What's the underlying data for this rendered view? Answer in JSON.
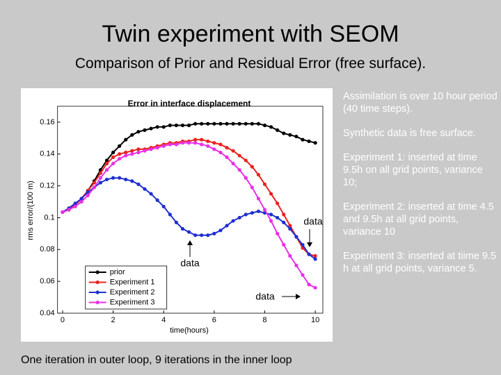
{
  "slide": {
    "title": "Twin experiment with SEOM",
    "subtitle": "Comparison of Prior and Residual Error (free surface).",
    "notes": [
      "Assimilation is over 10 hour period (40 time steps).",
      "Synthetic data is free surface.",
      "Experiment 1: inserted at time 9.5h on all grid points, variance 10;",
      "Experiment 2: inserted at time 4.5 and 9.5h at all grid points, variance 10",
      "Experiment 3: inserted at tiime 9.5 h at all grid points, variance 5."
    ],
    "caption": "One iteration in outer loop, 9 iterations in the inner loop"
  },
  "chart_data": {
    "type": "line",
    "title": "Error in interface displacement",
    "xlabel": "time(hours)",
    "ylabel": "rms error/(100 m)",
    "x": [
      0,
      0.25,
      0.5,
      0.75,
      1,
      1.25,
      1.5,
      1.75,
      2,
      2.25,
      2.5,
      2.75,
      3,
      3.25,
      3.5,
      3.75,
      4,
      4.25,
      4.5,
      4.75,
      5,
      5.25,
      5.5,
      5.75,
      6,
      6.25,
      6.5,
      6.75,
      7,
      7.25,
      7.5,
      7.75,
      8,
      8.25,
      8.5,
      8.75,
      9,
      9.25,
      9.5,
      9.75,
      10
    ],
    "series": [
      {
        "name": "prior",
        "color": "#000000",
        "values": [
          0.1035,
          0.105,
          0.108,
          0.112,
          0.117,
          0.123,
          0.13,
          0.136,
          0.141,
          0.145,
          0.149,
          0.152,
          0.154,
          0.155,
          0.156,
          0.157,
          0.157,
          0.158,
          0.158,
          0.158,
          0.158,
          0.159,
          0.159,
          0.159,
          0.159,
          0.159,
          0.159,
          0.159,
          0.159,
          0.159,
          0.159,
          0.159,
          0.158,
          0.157,
          0.155,
          0.153,
          0.152,
          0.151,
          0.149,
          0.148,
          0.147
        ]
      },
      {
        "name": "Experiment 1",
        "color": "#e8221f",
        "values": [
          0.1035,
          0.105,
          0.108,
          0.112,
          0.117,
          0.122,
          0.128,
          0.134,
          0.138,
          0.14,
          0.141,
          0.142,
          0.143,
          0.143,
          0.144,
          0.145,
          0.146,
          0.147,
          0.147,
          0.148,
          0.148,
          0.149,
          0.149,
          0.148,
          0.147,
          0.146,
          0.144,
          0.142,
          0.139,
          0.136,
          0.132,
          0.127,
          0.121,
          0.115,
          0.109,
          0.102,
          0.095,
          0.088,
          0.081,
          0.077,
          0.076
        ]
      },
      {
        "name": "Experiment 2",
        "color": "#1f2fd0",
        "values": [
          0.1035,
          0.106,
          0.109,
          0.112,
          0.116,
          0.119,
          0.122,
          0.124,
          0.125,
          0.125,
          0.124,
          0.123,
          0.121,
          0.118,
          0.115,
          0.111,
          0.107,
          0.102,
          0.097,
          0.093,
          0.091,
          0.089,
          0.089,
          0.089,
          0.09,
          0.092,
          0.095,
          0.098,
          0.1,
          0.102,
          0.103,
          0.104,
          0.103,
          0.102,
          0.1,
          0.097,
          0.093,
          0.088,
          0.083,
          0.077,
          0.074
        ]
      },
      {
        "name": "Experiment 3",
        "color": "#e830e8",
        "values": [
          0.1035,
          0.105,
          0.107,
          0.11,
          0.114,
          0.119,
          0.125,
          0.13,
          0.134,
          0.137,
          0.139,
          0.14,
          0.141,
          0.142,
          0.143,
          0.144,
          0.145,
          0.146,
          0.146,
          0.147,
          0.147,
          0.147,
          0.146,
          0.145,
          0.143,
          0.141,
          0.138,
          0.134,
          0.13,
          0.125,
          0.119,
          0.112,
          0.105,
          0.098,
          0.09,
          0.083,
          0.076,
          0.07,
          0.064,
          0.058,
          0.056
        ]
      }
    ],
    "xlim": [
      -0.2,
      10.3
    ],
    "xticks": [
      0,
      2,
      4,
      6,
      8,
      10
    ],
    "ylim": [
      0.04,
      0.17
    ],
    "yticks": [
      0.04,
      0.06,
      0.08,
      0.1,
      0.12,
      0.14,
      0.16
    ],
    "legend": "lower-left",
    "annotations": [
      "data",
      "data",
      "data"
    ]
  }
}
